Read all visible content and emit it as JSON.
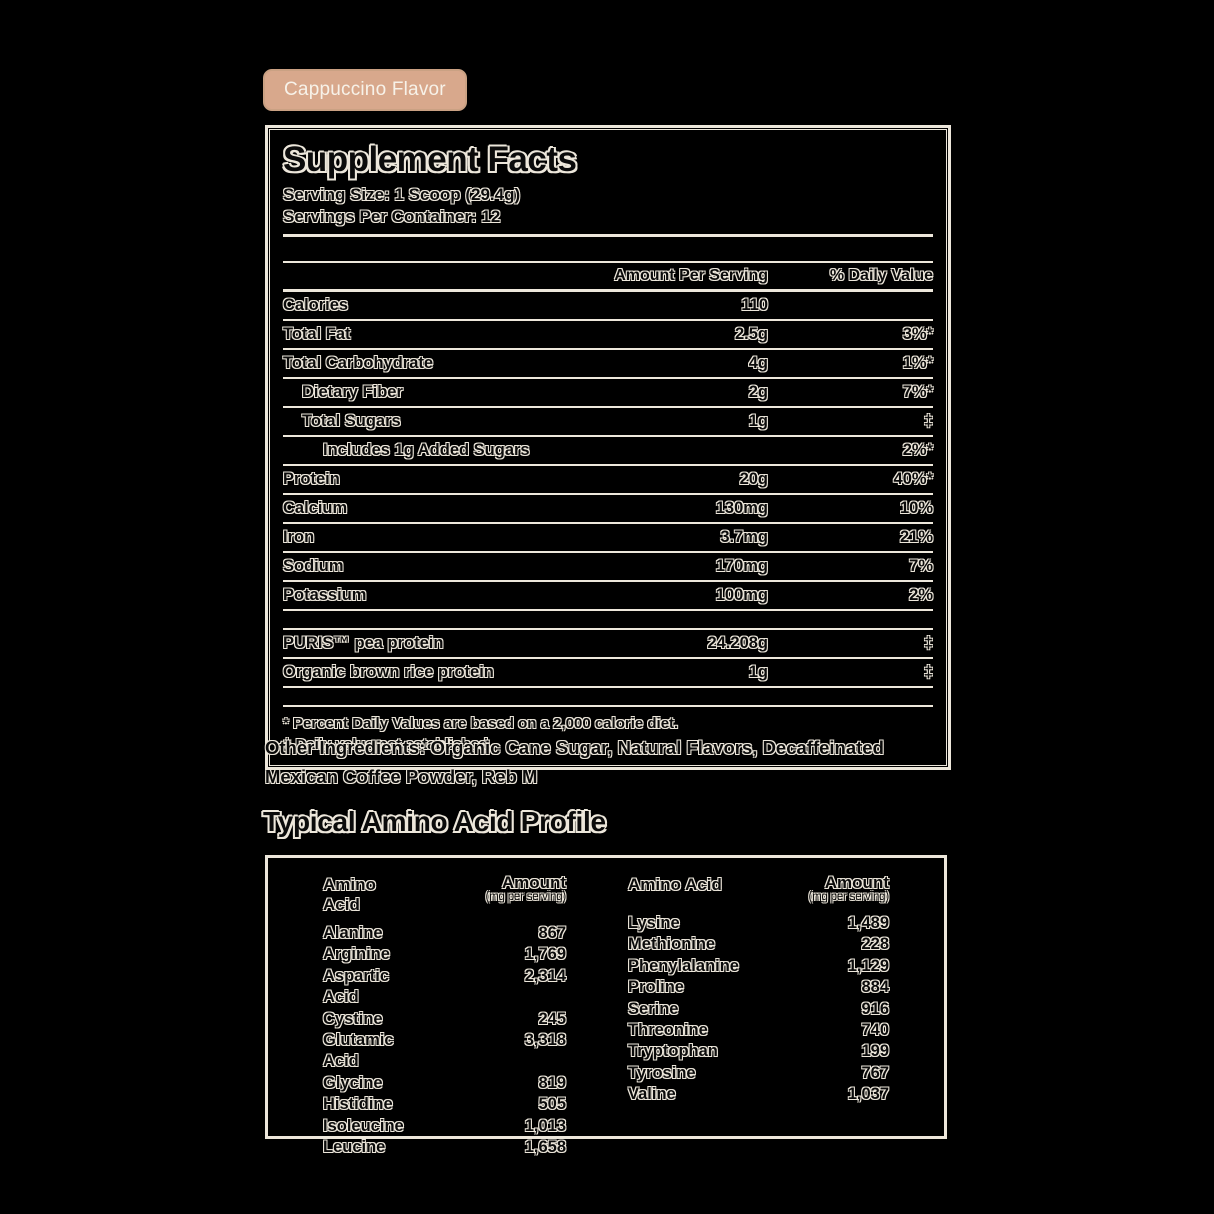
{
  "badge": {
    "label": "Cappuccino Flavor"
  },
  "supplement_facts": {
    "title": "Supplement Facts",
    "serving_size": "Serving Size: 1 Scoop (29.4g)",
    "servings_per_container": "Servings Per Container: 12",
    "col_amount": "Amount Per Serving",
    "col_dv": "% Daily Value",
    "rows": [
      {
        "label": "Calories",
        "amount": "110",
        "dv": "",
        "indent": 0
      },
      {
        "label": "Total Fat",
        "amount": "2.5g",
        "dv": "3%*",
        "indent": 0
      },
      {
        "label": "Total Carbohydrate",
        "amount": "4g",
        "dv": "1%*",
        "indent": 0
      },
      {
        "label": "Dietary Fiber",
        "amount": "2g",
        "dv": "7%*",
        "indent": 1
      },
      {
        "label": "Total Sugars",
        "amount": "1g",
        "dv": "‡",
        "indent": 1
      },
      {
        "label": "Includes 1g Added Sugars",
        "amount": "",
        "dv": "2%*",
        "indent": 2
      },
      {
        "label": "Protein",
        "amount": "20g",
        "dv": "40%*",
        "indent": 0
      },
      {
        "label": "Calcium",
        "amount": "130mg",
        "dv": "10%",
        "indent": 0
      },
      {
        "label": "Iron",
        "amount": "3.7mg",
        "dv": "21%",
        "indent": 0
      },
      {
        "label": "Sodium",
        "amount": "170mg",
        "dv": "7%",
        "indent": 0
      },
      {
        "label": "Potassium",
        "amount": "100mg",
        "dv": "2%",
        "indent": 0
      },
      {
        "spacer": true
      },
      {
        "label": "PURIS™ pea protein",
        "amount": "24.208g",
        "dv": "‡",
        "indent": 0
      },
      {
        "label": "Organic brown rice protein",
        "amount": "1g",
        "dv": "‡",
        "indent": 0
      },
      {
        "spacer": true
      }
    ],
    "footnotes": [
      "* Percent Daily Values are based on a 2,000 calorie diet.",
      "‡ Daily value not established."
    ]
  },
  "other_ingredients": "Other Ingredients: Organic Cane Sugar, Natural Flavors, Decaffeinated Mexican Coffee Powder, Reb M",
  "amino": {
    "title": "Typical Amino Acid Profile",
    "col_acid": "Amino Acid",
    "col_amount": "Amount",
    "col_amount_sub": "(mg per serving)",
    "left": [
      {
        "name": "Alanine",
        "value": "867"
      },
      {
        "name": "Arginine",
        "value": "1,769"
      },
      {
        "name": "Aspartic Acid",
        "value": "2,314"
      },
      {
        "name": "Cystine",
        "value": "245"
      },
      {
        "name": "Glutamic Acid",
        "value": "3,318"
      },
      {
        "name": "Glycine",
        "value": "819"
      },
      {
        "name": "Histidine",
        "value": "505"
      },
      {
        "name": "Isoleucine",
        "value": "1,013"
      },
      {
        "name": "Leucine",
        "value": "1,658"
      }
    ],
    "right": [
      {
        "name": "Lysine",
        "value": "1,489"
      },
      {
        "name": "Methionine",
        "value": "228"
      },
      {
        "name": "Phenylalanine",
        "value": "1,129"
      },
      {
        "name": "Proline",
        "value": "884"
      },
      {
        "name": "Serine",
        "value": "916"
      },
      {
        "name": "Threonine",
        "value": "740"
      },
      {
        "name": "Tryptophan",
        "value": "199"
      },
      {
        "name": "Tyrosine",
        "value": "767"
      },
      {
        "name": "Valine",
        "value": "1,037"
      }
    ]
  },
  "colors": {
    "background": "#000000",
    "cream": "#EDE7DB",
    "badge_tan": "#D8A88C",
    "ink": "#0b0b0b"
  }
}
